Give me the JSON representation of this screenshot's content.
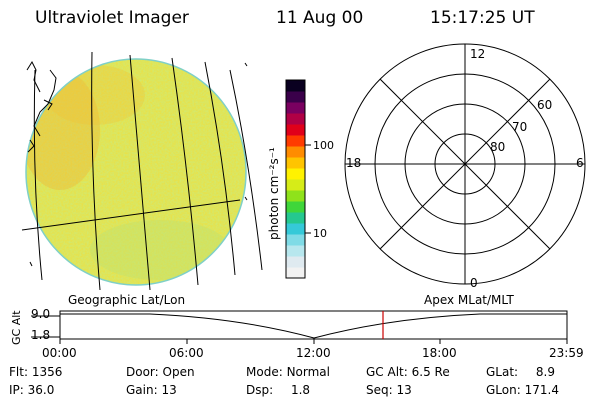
{
  "header": {
    "title": "Ultraviolet Imager",
    "date": "11 Aug 00",
    "time": "15:17:25 UT"
  },
  "colorbar": {
    "label": "photon cm⁻²s⁻¹",
    "ticks": [
      "100",
      "10"
    ],
    "colors": [
      "#f2f2f2",
      "#dfeaf0",
      "#b7e7ee",
      "#7fdbe6",
      "#35c9d8",
      "#25c88f",
      "#3fd63a",
      "#8fe21b",
      "#d6ec18",
      "#fff200",
      "#ffc400",
      "#ff8c00",
      "#ff3b00",
      "#e0001a",
      "#b00045",
      "#7a0060",
      "#3a004a",
      "#0a0020"
    ]
  },
  "polar": {
    "mlt_labels": [
      "12",
      "18",
      "6",
      "0"
    ],
    "lat_labels": [
      "60",
      "70",
      "80"
    ]
  },
  "timeline": {
    "left_title": "Geographic Lat/Lon",
    "right_title": "Apex MLat/MLT",
    "y_label": "GC Alt",
    "y_ticks": [
      "9.0",
      "1.8"
    ],
    "x_ticks": [
      "00:00",
      "06:00",
      "12:00",
      "18:00",
      "23:59"
    ],
    "current_time": "15:17:25",
    "marker_color": "#cc0000"
  },
  "info": {
    "row1": [
      {
        "label": "Flt:",
        "value": "1356"
      },
      {
        "label": "Door:",
        "value": "Open"
      },
      {
        "label": "Mode:",
        "value": "Normal"
      },
      {
        "label": "GC Alt:",
        "value": "6.5 Re"
      },
      {
        "label": "GLat:",
        "value": "8.9"
      }
    ],
    "row2": [
      {
        "label": "IP:",
        "value": "36.0"
      },
      {
        "label": "Gain:",
        "value": "13"
      },
      {
        "label": "Dsp:",
        "value": "1.8"
      },
      {
        "label": "Seq:",
        "value": "13"
      },
      {
        "label": "GLon:",
        "value": "171.4"
      }
    ]
  }
}
